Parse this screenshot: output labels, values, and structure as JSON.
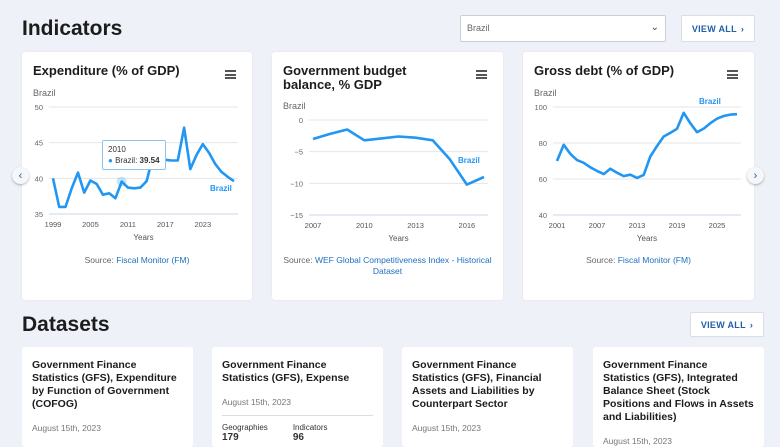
{
  "indicators_heading": "Indicators",
  "country_select": {
    "value": "Brazil"
  },
  "view_all_label": "VIEW ALL",
  "colors": {
    "line": "#2196f3",
    "link": "#1f6fc0",
    "background": "#eef1f7"
  },
  "charts": [
    {
      "title": "Expenditure (% of GDP)",
      "subtitle": "Brazil",
      "series_label": "Brazil",
      "xlabel": "Years",
      "source_prefix": "Source: ",
      "source_link": "Fiscal Monitor (FM)",
      "tooltip": {
        "year": "2010",
        "series": "Brazil",
        "value": "39.54"
      }
    },
    {
      "title": "Government budget balance, % GDP",
      "subtitle": "Brazil",
      "series_label": "Brazil",
      "xlabel": "Years",
      "source_prefix": "Source: ",
      "source_link": "WEF Global Competitiveness Index - Historical Dataset"
    },
    {
      "title": "Gross debt (% of GDP)",
      "subtitle": "Brazil",
      "series_label": "Brazil",
      "xlabel": "Years",
      "source_prefix": "Source: ",
      "source_link": "Fiscal Monitor (FM)"
    }
  ],
  "chart_data": [
    {
      "type": "line",
      "title": "Expenditure (% of GDP)",
      "xlabel": "Years",
      "ylim": [
        35,
        50
      ],
      "yticks": [
        35,
        40,
        45,
        50
      ],
      "xticks": [
        1999,
        2005,
        2011,
        2017,
        2023
      ],
      "grid": true,
      "series": [
        {
          "name": "Brazil",
          "x": [
            1999,
            2000,
            2001,
            2002,
            2003,
            2004,
            2005,
            2006,
            2007,
            2008,
            2009,
            2010,
            2011,
            2012,
            2013,
            2014,
            2015,
            2016,
            2017,
            2018,
            2019,
            2020,
            2021,
            2022,
            2023,
            2024,
            2025,
            2026,
            2027,
            2028
          ],
          "values": [
            40,
            36,
            36,
            38.6,
            40.8,
            38,
            39.7,
            39.2,
            37.7,
            37.9,
            37.2,
            39.54,
            38.7,
            38.6,
            38.7,
            39.6,
            43,
            44.4,
            42.6,
            42.5,
            42.5,
            47.1,
            41.3,
            43.3,
            44.8,
            43.6,
            42,
            40.9,
            40.2,
            39.6
          ]
        }
      ]
    },
    {
      "type": "line",
      "title": "Government budget balance, % GDP",
      "xlabel": "Years",
      "ylim": [
        -15,
        0
      ],
      "yticks": [
        -15,
        -10,
        -5,
        0
      ],
      "xticks": [
        2007,
        2010,
        2013,
        2016
      ],
      "grid": true,
      "series": [
        {
          "name": "Brazil",
          "x": [
            2007,
            2008,
            2009,
            2010,
            2011,
            2012,
            2013,
            2014,
            2015,
            2016,
            2017
          ],
          "values": [
            -3,
            -2.2,
            -1.5,
            -3.2,
            -2.9,
            -2.6,
            -2.8,
            -3.2,
            -6.2,
            -10.2,
            -9
          ]
        }
      ]
    },
    {
      "type": "line",
      "title": "Gross debt (% of GDP)",
      "xlabel": "Years",
      "ylim": [
        40,
        100
      ],
      "yticks": [
        40,
        60,
        80,
        100
      ],
      "xticks": [
        2001,
        2007,
        2013,
        2019,
        2025
      ],
      "grid": true,
      "series": [
        {
          "name": "Brazil",
          "x": [
            2001,
            2002,
            2003,
            2004,
            2005,
            2006,
            2007,
            2008,
            2009,
            2010,
            2011,
            2012,
            2013,
            2014,
            2015,
            2016,
            2017,
            2018,
            2019,
            2020,
            2021,
            2022,
            2023,
            2024,
            2025,
            2026,
            2027,
            2028
          ],
          "values": [
            70,
            79,
            74,
            70.5,
            69,
            66.5,
            64.5,
            62.7,
            65.7,
            63.5,
            61.6,
            62.4,
            60.6,
            62.3,
            72.5,
            78.3,
            83.6,
            85.6,
            87.9,
            96.8,
            91,
            86,
            88,
            91,
            93.5,
            95,
            95.8,
            96
          ]
        }
      ]
    }
  ],
  "datasets_heading": "Datasets",
  "datasets": [
    {
      "title": "Government Finance Statistics (GFS), Expenditure by Function of Government (COFOG)",
      "date": "August 15th, 2023"
    },
    {
      "title": "Government Finance Statistics (GFS), Expense",
      "date": "August 15th, 2023",
      "stats": [
        {
          "label": "Geographies",
          "value": "179"
        },
        {
          "label": "Indicators",
          "value": "96"
        }
      ]
    },
    {
      "title": "Government Finance Statistics (GFS), Financial Assets and Liabilities by Counterpart Sector",
      "date": "August 15th, 2023"
    },
    {
      "title": "Government Finance Statistics (GFS), Integrated Balance Sheet (Stock Positions and Flows in Assets and Liabilities)",
      "date": "August 15th, 2023"
    }
  ]
}
